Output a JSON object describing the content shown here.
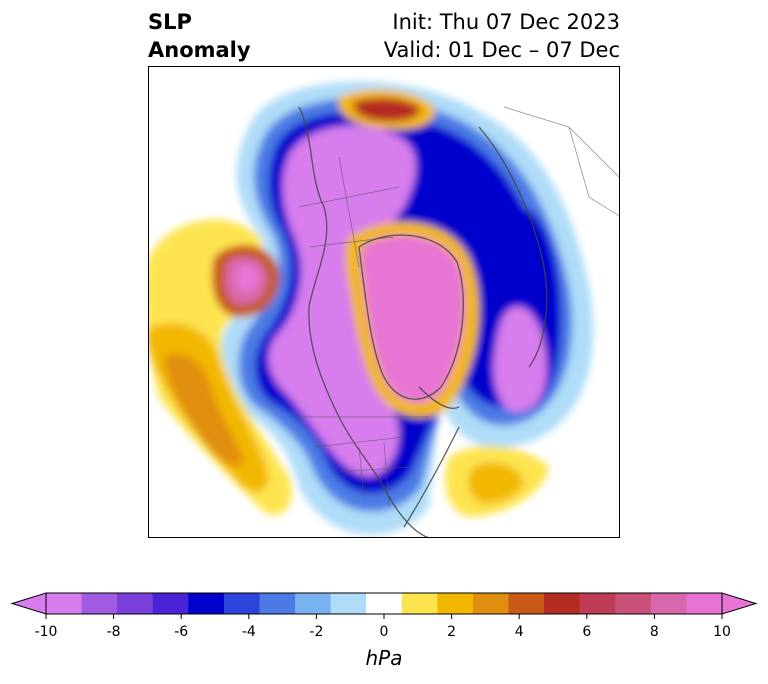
{
  "title": {
    "left_line1": "SLP",
    "left_line2": "Anomaly",
    "right_line1": "Init: Thu 07 Dec 2023",
    "right_line2": "Valid: 01 Dec – 07 Dec"
  },
  "colorbar": {
    "unit": "hPa",
    "min": -10,
    "max": 10,
    "ticks": [
      "-10",
      "-8",
      "-6",
      "-4",
      "-2",
      "0",
      "2",
      "4",
      "6",
      "8",
      "10"
    ],
    "colors": [
      "#d77ded",
      "#a05be0",
      "#7a3fdb",
      "#4b23d6",
      "#0000cc",
      "#2d44db",
      "#4c7ae5",
      "#79b2f0",
      "#afdcf8",
      "#ffffff",
      "#fde44f",
      "#f2b700",
      "#e08e10",
      "#c75a17",
      "#b42c22",
      "#bf3c56",
      "#c9507a",
      "#d868ac",
      "#e774d4"
    ]
  }
}
